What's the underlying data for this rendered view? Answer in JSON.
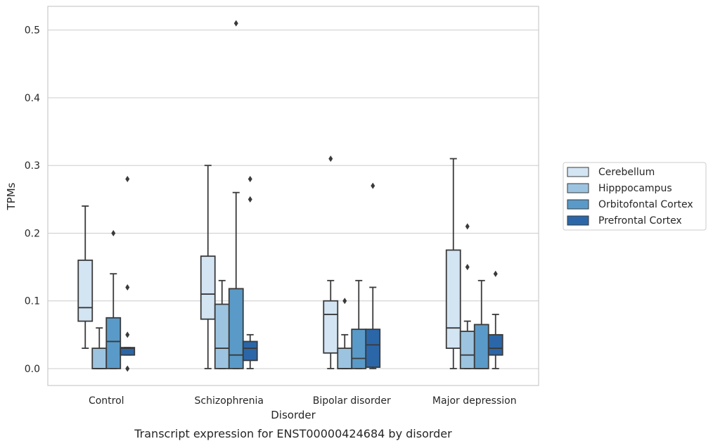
{
  "chart_data": {
    "type": "box",
    "title": "Transcript expression for ENST00000424684 by disorder",
    "xlabel": "Disorder",
    "ylabel": "TPMs",
    "ylim": [
      -0.025,
      0.535
    ],
    "yticks": [
      0.0,
      0.1,
      0.2,
      0.3,
      0.4,
      0.5
    ],
    "ytick_labels": [
      "0.0",
      "0.1",
      "0.2",
      "0.3",
      "0.4",
      "0.5"
    ],
    "grid": true,
    "legend_position": "right",
    "categories": [
      "Control",
      "Schizophrenia",
      "Bipolar disorder",
      "Major depression"
    ],
    "series": [
      {
        "name": "Cerebellum",
        "color": "#d3e4f3",
        "boxes": [
          {
            "whislo": 0.03,
            "q1": 0.07,
            "med": 0.09,
            "q3": 0.16,
            "whishi": 0.24,
            "fliers": []
          },
          {
            "whislo": 0.0,
            "q1": 0.073,
            "med": 0.11,
            "q3": 0.166,
            "whishi": 0.3,
            "fliers": []
          },
          {
            "whislo": 0.0,
            "q1": 0.023,
            "med": 0.08,
            "q3": 0.1,
            "whishi": 0.13,
            "fliers": [
              0.31
            ]
          },
          {
            "whislo": 0.0,
            "q1": 0.03,
            "med": 0.06,
            "q3": 0.175,
            "whishi": 0.31,
            "fliers": []
          }
        ]
      },
      {
        "name": "Hipppocampus",
        "color": "#9cc4e0",
        "boxes": [
          {
            "whislo": 0.0,
            "q1": 0.0,
            "med": 0.0,
            "q3": 0.03,
            "whishi": 0.06,
            "fliers": []
          },
          {
            "whislo": 0.0,
            "q1": 0.0,
            "med": 0.03,
            "q3": 0.095,
            "whishi": 0.13,
            "fliers": []
          },
          {
            "whislo": 0.0,
            "q1": 0.0,
            "med": 0.0,
            "q3": 0.03,
            "whishi": 0.05,
            "fliers": [
              0.1
            ]
          },
          {
            "whislo": 0.0,
            "q1": 0.0,
            "med": 0.02,
            "q3": 0.055,
            "whishi": 0.07,
            "fliers": [
              0.15,
              0.21
            ]
          }
        ]
      },
      {
        "name": "Orbitofontal Cortex",
        "color": "#5a9ac8",
        "boxes": [
          {
            "whislo": 0.0,
            "q1": 0.0,
            "med": 0.04,
            "q3": 0.075,
            "whishi": 0.14,
            "fliers": [
              0.2
            ]
          },
          {
            "whislo": 0.0,
            "q1": 0.0,
            "med": 0.02,
            "q3": 0.118,
            "whishi": 0.26,
            "fliers": [
              0.51
            ]
          },
          {
            "whislo": 0.0,
            "q1": 0.0,
            "med": 0.015,
            "q3": 0.058,
            "whishi": 0.13,
            "fliers": []
          },
          {
            "whislo": 0.0,
            "q1": 0.0,
            "med": 0.0,
            "q3": 0.065,
            "whishi": 0.13,
            "fliers": []
          }
        ]
      },
      {
        "name": "Prefrontal Cortex",
        "color": "#2b67a8",
        "boxes": [
          {
            "whislo": 0.02,
            "q1": 0.02,
            "med": 0.03,
            "q3": 0.031,
            "whishi": 0.031,
            "fliers": [
              0.0,
              0.05,
              0.12,
              0.28
            ]
          },
          {
            "whislo": 0.0,
            "q1": 0.012,
            "med": 0.03,
            "q3": 0.04,
            "whishi": 0.05,
            "fliers": [
              0.25,
              0.28
            ]
          },
          {
            "whislo": 0.0,
            "q1": 0.002,
            "med": 0.035,
            "q3": 0.058,
            "whishi": 0.12,
            "fliers": [
              0.27
            ]
          },
          {
            "whislo": 0.0,
            "q1": 0.02,
            "med": 0.03,
            "q3": 0.05,
            "whishi": 0.08,
            "fliers": [
              0.14
            ]
          }
        ]
      }
    ]
  }
}
